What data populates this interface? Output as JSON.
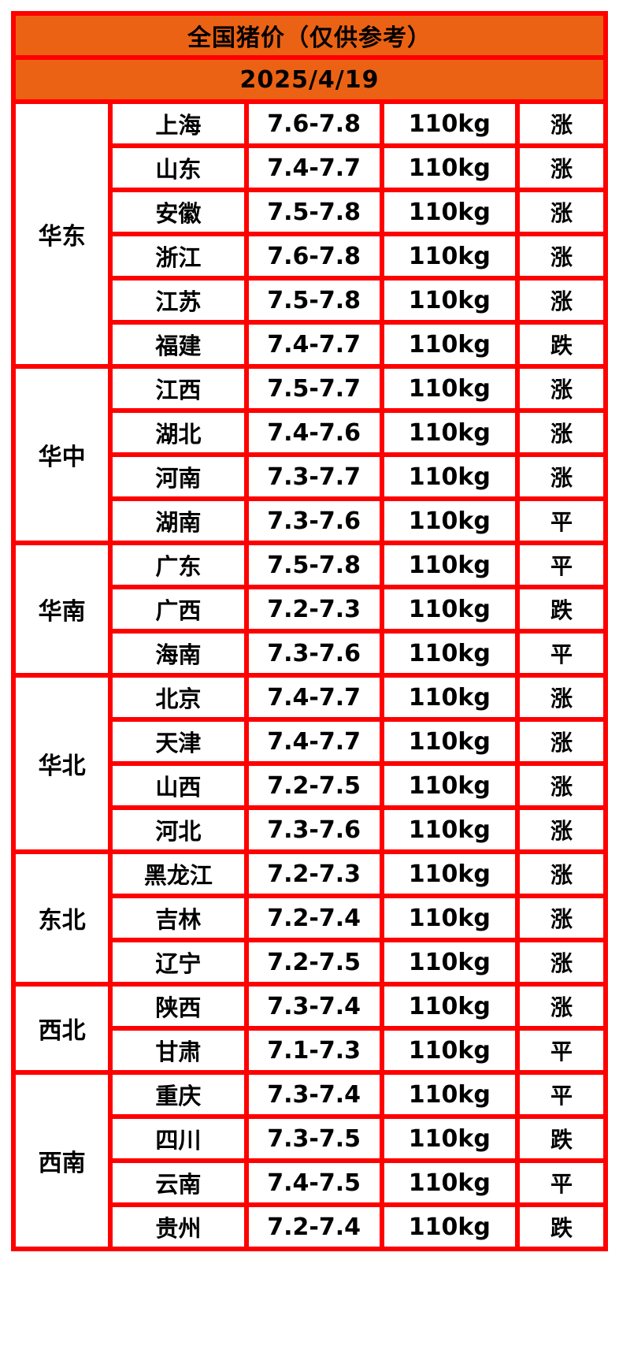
{
  "title": "全国猪价（仅供参考）",
  "date": "2025/4/19",
  "colors": {
    "header_orange": "#ec6214",
    "grid_red": "#ff0000",
    "trend_up_red": "#fb3e56",
    "trend_down_green": "#2fd61f",
    "trend_flat_black": "#000000"
  },
  "regions": [
    {
      "name": "华东",
      "rows": [
        {
          "province": "上海",
          "price": "7.6-7.8",
          "weight": "110kg",
          "trend": "涨",
          "trend_type": "up"
        },
        {
          "province": "山东",
          "price": "7.4-7.7",
          "weight": "110kg",
          "trend": "涨",
          "trend_type": "up"
        },
        {
          "province": "安徽",
          "price": "7.5-7.8",
          "weight": "110kg",
          "trend": "涨",
          "trend_type": "up"
        },
        {
          "province": "浙江",
          "price": "7.6-7.8",
          "weight": "110kg",
          "trend": "涨",
          "trend_type": "up"
        },
        {
          "province": "江苏",
          "price": "7.5-7.8",
          "weight": "110kg",
          "trend": "涨",
          "trend_type": "up"
        },
        {
          "province": "福建",
          "price": "7.4-7.7",
          "weight": "110kg",
          "trend": "跌",
          "trend_type": "down"
        }
      ]
    },
    {
      "name": "华中",
      "rows": [
        {
          "province": "江西",
          "price": "7.5-7.7",
          "weight": "110kg",
          "trend": "涨",
          "trend_type": "up"
        },
        {
          "province": "湖北",
          "price": "7.4-7.6",
          "weight": "110kg",
          "trend": "涨",
          "trend_type": "up"
        },
        {
          "province": "河南",
          "price": "7.3-7.7",
          "weight": "110kg",
          "trend": "涨",
          "trend_type": "up"
        },
        {
          "province": "湖南",
          "price": "7.3-7.6",
          "weight": "110kg",
          "trend": "平",
          "trend_type": "flat"
        }
      ]
    },
    {
      "name": "华南",
      "rows": [
        {
          "province": "广东",
          "price": "7.5-7.8",
          "weight": "110kg",
          "trend": "平",
          "trend_type": "flat"
        },
        {
          "province": "广西",
          "price": "7.2-7.3",
          "weight": "110kg",
          "trend": "跌",
          "trend_type": "down"
        },
        {
          "province": "海南",
          "price": "7.3-7.6",
          "weight": "110kg",
          "trend": "平",
          "trend_type": "flat"
        }
      ]
    },
    {
      "name": "华北",
      "rows": [
        {
          "province": "北京",
          "price": "7.4-7.7",
          "weight": "110kg",
          "trend": "涨",
          "trend_type": "up"
        },
        {
          "province": "天津",
          "price": "7.4-7.7",
          "weight": "110kg",
          "trend": "涨",
          "trend_type": "up"
        },
        {
          "province": "山西",
          "price": "7.2-7.5",
          "weight": "110kg",
          "trend": "涨",
          "trend_type": "up"
        },
        {
          "province": "河北",
          "price": "7.3-7.6",
          "weight": "110kg",
          "trend": "涨",
          "trend_type": "up"
        }
      ]
    },
    {
      "name": "东北",
      "rows": [
        {
          "province": "黑龙江",
          "price": "7.2-7.3",
          "weight": "110kg",
          "trend": "涨",
          "trend_type": "up"
        },
        {
          "province": "吉林",
          "price": "7.2-7.4",
          "weight": "110kg",
          "trend": "涨",
          "trend_type": "up"
        },
        {
          "province": "辽宁",
          "price": "7.2-7.5",
          "weight": "110kg",
          "trend": "涨",
          "trend_type": "up"
        }
      ]
    },
    {
      "name": "西北",
      "rows": [
        {
          "province": "陕西",
          "price": "7.3-7.4",
          "weight": "110kg",
          "trend": "涨",
          "trend_type": "up"
        },
        {
          "province": "甘肃",
          "price": "7.1-7.3",
          "weight": "110kg",
          "trend": "平",
          "trend_type": "flat"
        }
      ]
    },
    {
      "name": "西南",
      "rows": [
        {
          "province": "重庆",
          "price": "7.3-7.4",
          "weight": "110kg",
          "trend": "平",
          "trend_type": "flat"
        },
        {
          "province": "四川",
          "price": "7.3-7.5",
          "weight": "110kg",
          "trend": "跌",
          "trend_type": "down"
        },
        {
          "province": "云南",
          "price": "7.4-7.5",
          "weight": "110kg",
          "trend": "平",
          "trend_type": "flat"
        },
        {
          "province": "贵州",
          "price": "7.2-7.4",
          "weight": "110kg",
          "trend": "跌",
          "trend_type": "down"
        }
      ]
    }
  ],
  "chart_data": {
    "type": "table",
    "title": "全国猪价（仅供参考）",
    "subtitle": "2025/4/19",
    "columns": [
      "region",
      "province",
      "price_range",
      "weight",
      "trend"
    ],
    "rows": [
      [
        "华东",
        "上海",
        "7.6-7.8",
        "110kg",
        "涨"
      ],
      [
        "华东",
        "山东",
        "7.4-7.7",
        "110kg",
        "涨"
      ],
      [
        "华东",
        "安徽",
        "7.5-7.8",
        "110kg",
        "涨"
      ],
      [
        "华东",
        "浙江",
        "7.6-7.8",
        "110kg",
        "涨"
      ],
      [
        "华东",
        "江苏",
        "7.5-7.8",
        "110kg",
        "涨"
      ],
      [
        "华东",
        "福建",
        "7.4-7.7",
        "110kg",
        "跌"
      ],
      [
        "华中",
        "江西",
        "7.5-7.7",
        "110kg",
        "涨"
      ],
      [
        "华中",
        "湖北",
        "7.4-7.6",
        "110kg",
        "涨"
      ],
      [
        "华中",
        "河南",
        "7.3-7.7",
        "110kg",
        "涨"
      ],
      [
        "华中",
        "湖南",
        "7.3-7.6",
        "110kg",
        "平"
      ],
      [
        "华南",
        "广东",
        "7.5-7.8",
        "110kg",
        "平"
      ],
      [
        "华南",
        "广西",
        "7.2-7.3",
        "110kg",
        "跌"
      ],
      [
        "华南",
        "海南",
        "7.3-7.6",
        "110kg",
        "平"
      ],
      [
        "华北",
        "北京",
        "7.4-7.7",
        "110kg",
        "涨"
      ],
      [
        "华北",
        "天津",
        "7.4-7.7",
        "110kg",
        "涨"
      ],
      [
        "华北",
        "山西",
        "7.2-7.5",
        "110kg",
        "涨"
      ],
      [
        "华北",
        "河北",
        "7.3-7.6",
        "110kg",
        "涨"
      ],
      [
        "东北",
        "黑龙江",
        "7.2-7.3",
        "110kg",
        "涨"
      ],
      [
        "东北",
        "吉林",
        "7.2-7.4",
        "110kg",
        "涨"
      ],
      [
        "东北",
        "辽宁",
        "7.2-7.5",
        "110kg",
        "涨"
      ],
      [
        "西北",
        "陕西",
        "7.3-7.4",
        "110kg",
        "涨"
      ],
      [
        "西北",
        "甘肃",
        "7.1-7.3",
        "110kg",
        "平"
      ],
      [
        "西南",
        "重庆",
        "7.3-7.4",
        "110kg",
        "平"
      ],
      [
        "西南",
        "四川",
        "7.3-7.5",
        "110kg",
        "跌"
      ],
      [
        "西南",
        "云南",
        "7.4-7.5",
        "110kg",
        "平"
      ],
      [
        "西南",
        "贵州",
        "7.2-7.4",
        "110kg",
        "跌"
      ]
    ]
  }
}
